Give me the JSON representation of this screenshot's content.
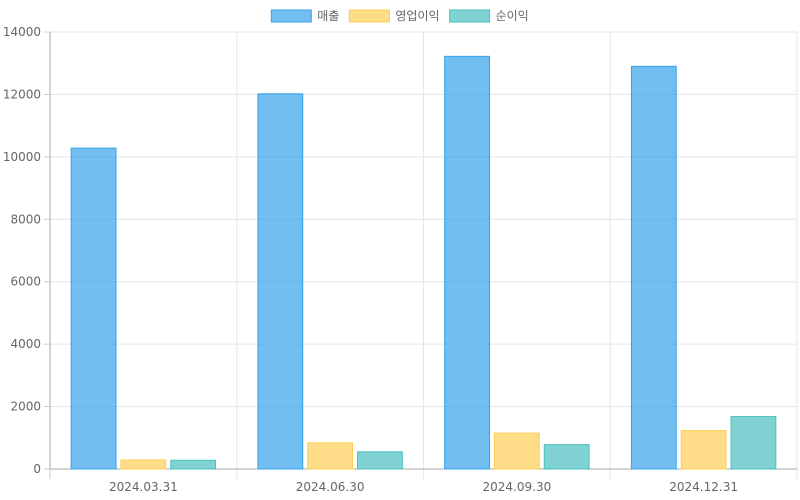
{
  "chart_data": {
    "type": "bar",
    "categories": [
      "2024.03.31",
      "2024.06.30",
      "2024.09.30",
      "2024.12.31"
    ],
    "series": [
      {
        "name": "매출",
        "values": [
          10280,
          12020,
          13220,
          12900
        ],
        "color": "#36A2EB"
      },
      {
        "name": "영업이익",
        "values": [
          290,
          840,
          1150,
          1230
        ],
        "color": "#FFCD56"
      },
      {
        "name": "순이익",
        "values": [
          280,
          550,
          780,
          1680
        ],
        "color": "#4BC0C0"
      }
    ],
    "ylim": [
      0,
      14000
    ],
    "yticks": [
      0,
      2000,
      4000,
      6000,
      8000,
      10000,
      12000,
      14000
    ],
    "grid": true,
    "legend_position": "top-center"
  }
}
